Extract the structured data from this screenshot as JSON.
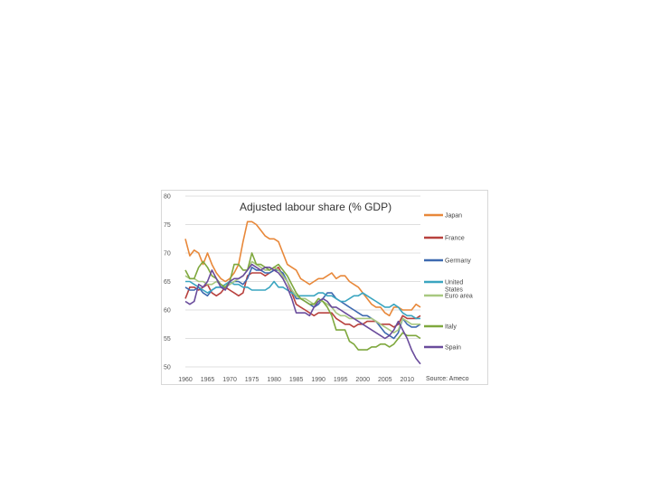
{
  "chart_data": {
    "type": "line",
    "title": "Adjusted labour share (% GDP)",
    "source": "Source: Ameco",
    "ylim": [
      50,
      80
    ],
    "yticks": [
      "50",
      "55",
      "60",
      "65",
      "70",
      "75",
      "80"
    ],
    "xlim": [
      1960,
      2013
    ],
    "xticks": [
      "1960",
      "1965",
      "1970",
      "1975",
      "1980",
      "1985",
      "1990",
      "1995",
      "2000",
      "2005",
      "2010"
    ],
    "grid": "horizontal",
    "legend": "right",
    "x": [
      1960,
      1961,
      1962,
      1963,
      1964,
      1965,
      1966,
      1967,
      1968,
      1969,
      1970,
      1971,
      1972,
      1973,
      1974,
      1975,
      1976,
      1977,
      1978,
      1979,
      1980,
      1981,
      1982,
      1983,
      1984,
      1985,
      1986,
      1987,
      1988,
      1989,
      1990,
      1991,
      1992,
      1993,
      1994,
      1995,
      1996,
      1997,
      1998,
      1999,
      2000,
      2001,
      2002,
      2003,
      2004,
      2005,
      2006,
      2007,
      2008,
      2009,
      2010,
      2011,
      2012,
      2013
    ],
    "series": [
      {
        "name": "Japan",
        "color": "#e8883a",
        "values": [
          72.5,
          69.5,
          70.5,
          70,
          68,
          70,
          68,
          66.5,
          65.5,
          65,
          65.5,
          66.5,
          68,
          72,
          75.5,
          75.5,
          75,
          74,
          73,
          72.5,
          72.5,
          72,
          70,
          68,
          67.5,
          67,
          65.5,
          65,
          64.5,
          65,
          65.5,
          65.5,
          66,
          66.5,
          65.5,
          66,
          66,
          65,
          64.5,
          64,
          63,
          62,
          61,
          60.5,
          60.5,
          59.5,
          59,
          60.5,
          60.5,
          60,
          60,
          60,
          61,
          60.5
        ]
      },
      {
        "name": "France",
        "color": "#b8413e",
        "values": [
          62,
          64,
          64,
          63.5,
          64,
          64.5,
          63,
          62.5,
          63,
          64,
          63.5,
          63,
          62.5,
          63,
          66,
          66.5,
          66.5,
          66.5,
          66,
          66.5,
          67,
          67.5,
          66,
          65,
          63,
          61,
          60.5,
          60,
          59.5,
          59,
          59.5,
          59.5,
          59.5,
          59.5,
          58.5,
          58,
          57.5,
          57.5,
          57,
          57.5,
          57.5,
          58,
          58,
          58,
          57.5,
          57.5,
          57.5,
          57,
          57.5,
          59,
          58.5,
          58.5,
          58.5,
          59
        ]
      },
      {
        "name": "Germany",
        "color": "#3e6ab0",
        "values": [
          64,
          63.5,
          63.5,
          64,
          63,
          62.5,
          63.5,
          64,
          64,
          64,
          64.5,
          65,
          65,
          64.5,
          65.5,
          67.5,
          67,
          67,
          66.5,
          66.5,
          67,
          67,
          66.5,
          65,
          63.5,
          62,
          62,
          61.5,
          61,
          60.5,
          61,
          62,
          63,
          63,
          62,
          61.5,
          61,
          60.5,
          60,
          59.5,
          59,
          59,
          58.5,
          58,
          57,
          56,
          55.5,
          55,
          56,
          58.5,
          57.5,
          57,
          57,
          57.5
        ]
      },
      {
        "name": "United States",
        "color": "#3ba5c0",
        "values": [
          65,
          65,
          64.5,
          64,
          63.5,
          63,
          63.5,
          64,
          64,
          64.5,
          65,
          64.5,
          64.5,
          64,
          64,
          63.5,
          63.5,
          63.5,
          63.5,
          64,
          65,
          64,
          64,
          63.5,
          63,
          62.5,
          62.5,
          62.5,
          62.5,
          62.5,
          63,
          63,
          62.5,
          62.5,
          62,
          61.5,
          61.5,
          62,
          62.5,
          62.5,
          63,
          62.5,
          62,
          61.5,
          61,
          60.5,
          60.5,
          61,
          60.5,
          59.5,
          59,
          59,
          58.5,
          58.5
        ]
      },
      {
        "name": "Euro area",
        "color": "#a8c880",
        "values": [
          66,
          65.5,
          65.5,
          65,
          65,
          64.5,
          64.5,
          65,
          64.5,
          64,
          64.5,
          65,
          65.5,
          66,
          67,
          68.5,
          68,
          67.5,
          67,
          67,
          67.5,
          67,
          66,
          65,
          63.5,
          62.5,
          62,
          62,
          61.5,
          61,
          61.5,
          61.5,
          61,
          60.5,
          59.5,
          59,
          59,
          58.5,
          58.5,
          58.5,
          58.5,
          58.5,
          58.5,
          58,
          57.5,
          57,
          56.5,
          56,
          56.5,
          58.5,
          58,
          57.5,
          57.5,
          57.5
        ]
      },
      {
        "name": "Italy",
        "color": "#7fa83e",
        "values": [
          67,
          65.5,
          65.5,
          67.5,
          68.5,
          67.5,
          66,
          65.5,
          64.5,
          64,
          65,
          68,
          68,
          67,
          67,
          70,
          68,
          68,
          67.5,
          67,
          67.5,
          68,
          67,
          66,
          64.5,
          63,
          62,
          61.5,
          61,
          61,
          62,
          61.5,
          60.5,
          59,
          56.5,
          56.5,
          56.5,
          54.5,
          54,
          53,
          53,
          53,
          53.5,
          53.5,
          54,
          54,
          53.5,
          54,
          55,
          56,
          55.5,
          55.5,
          55.5,
          55
        ]
      },
      {
        "name": "Spain",
        "color": "#6a4c9c",
        "values": [
          61.5,
          61,
          61.5,
          64.5,
          64,
          65,
          67,
          65.5,
          64,
          63.5,
          65,
          65.5,
          65.5,
          66,
          67,
          68,
          67.5,
          67,
          67.5,
          67.5,
          67,
          66.5,
          65.5,
          64,
          62,
          59.5,
          59.5,
          59.5,
          59,
          60.5,
          61.5,
          62,
          61.5,
          60.5,
          60.5,
          60,
          59.5,
          59,
          58.5,
          58,
          57.5,
          57,
          56.5,
          56,
          55.5,
          55,
          55.5,
          56.5,
          58,
          56.5,
          55,
          53,
          51.5,
          50.5
        ]
      }
    ]
  }
}
